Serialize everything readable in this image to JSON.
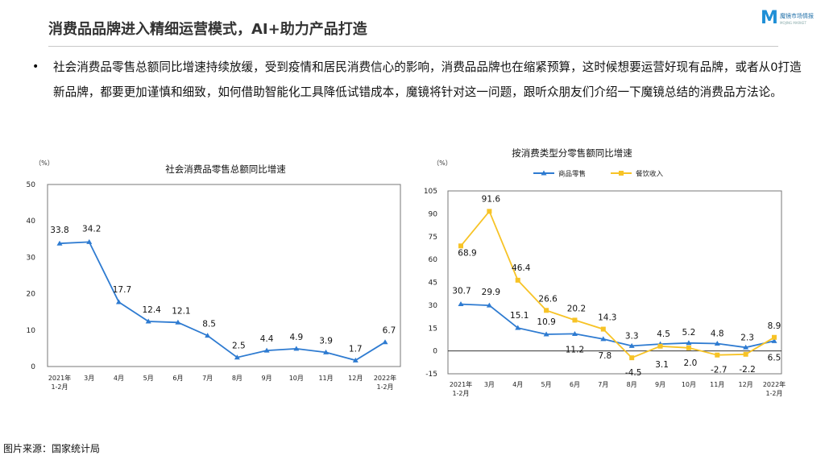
{
  "header": {
    "title": "消费品品牌进入精细运营模式，AI+助力产品打造"
  },
  "logo": {
    "mark": "M",
    "name": "魔镜市场情报",
    "sub": "MOJING MARKET"
  },
  "bullet": {
    "text": "社会消费品零售总额同比增速持续放缓，受到疫情和居民消费信心的影响，消费品品牌也在缩紧预算，这时候想要运营好现有品牌，或者从0打造新品牌，都要更加谨慎和细致，如何借助智能化工具降低试错成本，魔镜将针对这一问题，跟听众朋友们介绍一下魔镜总结的消费品方法论。"
  },
  "source": "图片来源：国家统计局",
  "chart_data": [
    {
      "type": "line",
      "title": "社会消费品零售总额同比增速",
      "ylabel": "（%）",
      "ylim": [
        0,
        50
      ],
      "yticks": [
        "0",
        "10",
        "20",
        "30",
        "40",
        "50"
      ],
      "categories": [
        "2021年\n1-2月",
        "3月",
        "4月",
        "5月",
        "6月",
        "7月",
        "8月",
        "9月",
        "10月",
        "11月",
        "12月",
        "2022年\n1-2月"
      ],
      "series": [
        {
          "name": "",
          "color": "#2e7bd1",
          "values": [
            33.8,
            34.2,
            17.7,
            12.4,
            12.1,
            8.5,
            2.5,
            4.4,
            4.9,
            3.9,
            1.7,
            6.7
          ],
          "labels": [
            "33.8",
            "34.2",
            "17.7",
            "12.4",
            "12.1",
            "8.5",
            "2.5",
            "4.4",
            "4.9",
            "3.9",
            "1.7",
            "6.7"
          ]
        }
      ],
      "grid": false
    },
    {
      "type": "line",
      "title": "按消费类型分零售额同比增速",
      "ylabel": "（%）",
      "ylim": [
        -15,
        105
      ],
      "yticks": [
        "-15",
        "0",
        "15",
        "30",
        "45",
        "60",
        "75",
        "90",
        "105"
      ],
      "categories": [
        "2021年\n1-2月",
        "3月",
        "4月",
        "5月",
        "6月",
        "7月",
        "8月",
        "9月",
        "10月",
        "11月",
        "12月",
        "2022年\n1-2月"
      ],
      "legend_position": "top-left",
      "series": [
        {
          "name": "商品零售",
          "color": "#2e7bd1",
          "values": [
            30.7,
            29.9,
            15.1,
            10.9,
            11.2,
            7.8,
            3.3,
            4.5,
            5.2,
            4.8,
            2.3,
            6.5
          ],
          "labels": [
            "30.7",
            "29.9",
            "15.1",
            "10.9",
            "11.2",
            "7.8",
            "3.3",
            "4.5",
            "5.2",
            "4.8",
            "2.3",
            "6.5"
          ]
        },
        {
          "name": "餐饮收入",
          "color": "#f7c326",
          "values": [
            68.9,
            91.6,
            46.4,
            26.6,
            20.2,
            14.3,
            -4.5,
            3.1,
            2.0,
            -2.7,
            -2.2,
            8.9
          ],
          "labels": [
            "68.9",
            "91.6",
            "46.4",
            "26.6",
            "20.2",
            "14.3",
            "-4.5",
            "3.1",
            "2.0",
            "-2.7",
            "-2.2",
            "8.9"
          ]
        }
      ],
      "grid": false
    }
  ]
}
